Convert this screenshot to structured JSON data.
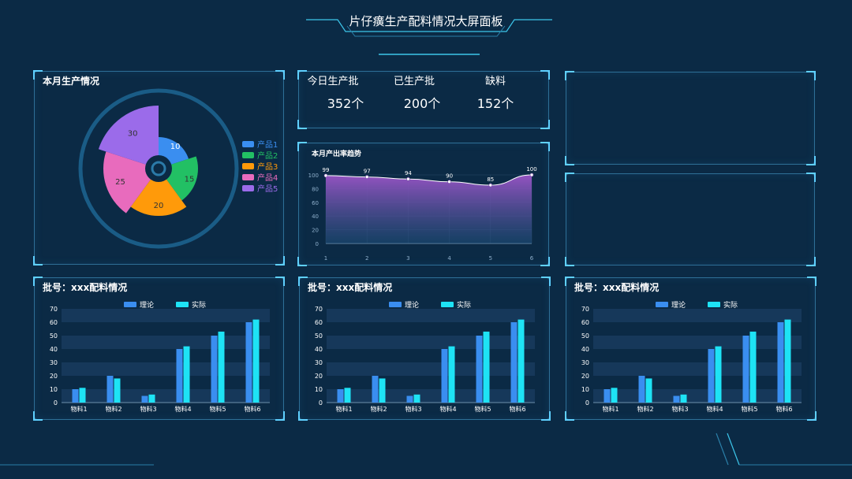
{
  "header": {
    "title": "片仔癀生产配料情况大屏面板"
  },
  "stats": [
    {
      "label": "今日生产批",
      "value": "352个"
    },
    {
      "label": "已生产批",
      "value": "200个"
    },
    {
      "label": "缺料",
      "value": "152个"
    }
  ],
  "colors": {
    "background": "#0b2a45",
    "accent": "#5fd0ff",
    "theory_bar": "#3a8ef0",
    "actual_bar": "#1ee3f5"
  },
  "chart_data": [
    {
      "type": "pie",
      "title": "本月生产情况",
      "variant": "rose",
      "categories": [
        "产品1",
        "产品2",
        "产品3",
        "产品4",
        "产品5"
      ],
      "values": [
        10,
        15,
        20,
        25,
        30
      ],
      "colors": [
        "#3a8ef0",
        "#22c064",
        "#ff9a0a",
        "#e86bbd",
        "#9b6bea"
      ],
      "legend": "right"
    },
    {
      "type": "area",
      "title": "本月产出率趋势",
      "x": [
        1,
        2,
        3,
        4,
        5,
        6
      ],
      "values": [
        99,
        97,
        94,
        90,
        85,
        100
      ],
      "ylim": [
        0,
        100
      ],
      "yticks": [
        0,
        20,
        40,
        60,
        80,
        100
      ],
      "grid": true
    },
    {
      "type": "bar",
      "title": "批号：xxx配料情况",
      "categories": [
        "物料1",
        "物料2",
        "物料3",
        "物料4",
        "物料5",
        "物料6"
      ],
      "series": [
        {
          "name": "理论",
          "values": [
            10,
            20,
            5,
            40,
            50,
            60
          ]
        },
        {
          "name": "实际",
          "values": [
            11,
            18,
            6,
            42,
            53,
            62
          ]
        }
      ],
      "ylim": [
        0,
        70
      ],
      "yticks": [
        0,
        10,
        20,
        30,
        40,
        50,
        60,
        70
      ],
      "legend": "top"
    },
    {
      "type": "bar",
      "title": "批号：xxx配料情况",
      "categories": [
        "物料1",
        "物料2",
        "物料3",
        "物料4",
        "物料5",
        "物料6"
      ],
      "series": [
        {
          "name": "理论",
          "values": [
            10,
            20,
            5,
            40,
            50,
            60
          ]
        },
        {
          "name": "实际",
          "values": [
            11,
            18,
            6,
            42,
            53,
            62
          ]
        }
      ],
      "ylim": [
        0,
        70
      ],
      "yticks": [
        0,
        10,
        20,
        30,
        40,
        50,
        60,
        70
      ],
      "legend": "top"
    },
    {
      "type": "bar",
      "title": "批号：xxx配料情况",
      "categories": [
        "物料1",
        "物料2",
        "物料3",
        "物料4",
        "物料5",
        "物料6"
      ],
      "series": [
        {
          "name": "理论",
          "values": [
            10,
            20,
            5,
            40,
            50,
            60
          ]
        },
        {
          "name": "实际",
          "values": [
            11,
            18,
            6,
            42,
            53,
            62
          ]
        }
      ],
      "ylim": [
        0,
        70
      ],
      "yticks": [
        0,
        10,
        20,
        30,
        40,
        50,
        60,
        70
      ],
      "legend": "top"
    }
  ]
}
